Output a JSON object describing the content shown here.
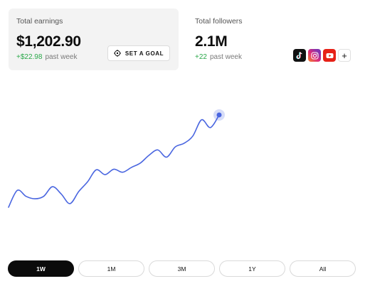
{
  "earnings": {
    "label": "Total earnings",
    "value": "$1,202.90",
    "delta": "+$22.98",
    "period": "past week",
    "goal_button": "SET A GOAL"
  },
  "followers": {
    "label": "Total followers",
    "value": "2.1M",
    "delta": "+22",
    "period": "past week",
    "socials": [
      {
        "name": "tiktok",
        "icon": "tiktok-icon",
        "color": "#111111"
      },
      {
        "name": "instagram",
        "icon": "instagram-icon",
        "color": "#dd2a7b"
      },
      {
        "name": "youtube",
        "icon": "youtube-icon",
        "color": "#e62117"
      }
    ],
    "add_label": "+"
  },
  "chart": {
    "line_color": "#4a66e0",
    "values": [
      0,
      0.28,
      0.18,
      0.14,
      0.18,
      0.34,
      0.22,
      0.06,
      0.26,
      0.42,
      0.62,
      0.54,
      0.63,
      0.58,
      0.66,
      0.73,
      0.86,
      0.95,
      0.83,
      1.0,
      1.06,
      1.18,
      1.45,
      1.32,
      1.53
    ]
  },
  "ranges": [
    "1W",
    "1M",
    "3M",
    "1Y",
    "All"
  ],
  "selected_range": "1W"
}
